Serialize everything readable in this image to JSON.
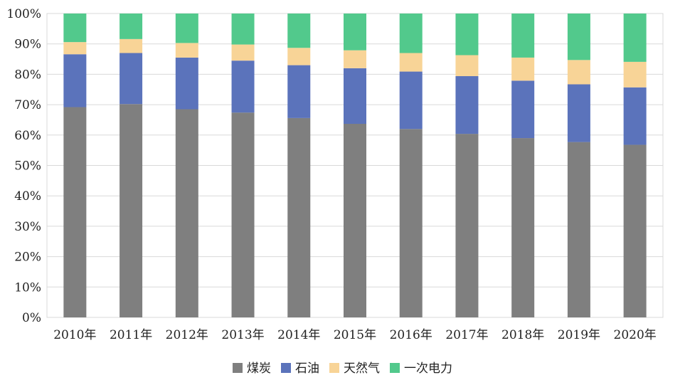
{
  "chart_data": {
    "type": "bar",
    "stacked": true,
    "percent_stacked": true,
    "categories": [
      "2010年",
      "2011年",
      "2012年",
      "2013年",
      "2014年",
      "2015年",
      "2016年",
      "2017年",
      "2018年",
      "2019年",
      "2020年"
    ],
    "series": [
      {
        "name": "煤炭",
        "color": "#7f7f7f",
        "values": [
          69.2,
          70.2,
          68.5,
          67.4,
          65.6,
          63.7,
          62.0,
          60.4,
          59.0,
          57.7,
          56.8
        ]
      },
      {
        "name": "石油",
        "color": "#5b73bb",
        "values": [
          17.4,
          16.8,
          17.0,
          17.1,
          17.4,
          18.3,
          18.9,
          19.0,
          18.9,
          19.0,
          18.9
        ]
      },
      {
        "name": "天然气",
        "color": "#f8d497",
        "values": [
          4.0,
          4.6,
          4.8,
          5.3,
          5.7,
          5.9,
          6.1,
          6.9,
          7.6,
          8.0,
          8.4
        ]
      },
      {
        "name": "一次电力",
        "color": "#52c98c",
        "values": [
          9.4,
          8.4,
          9.7,
          10.2,
          11.3,
          12.1,
          13.0,
          13.7,
          14.5,
          15.3,
          15.9
        ]
      }
    ],
    "title": "",
    "xlabel": "",
    "ylabel": "",
    "ylim": [
      0,
      100
    ],
    "yticks": [
      "0%",
      "10%",
      "20%",
      "30%",
      "40%",
      "50%",
      "60%",
      "70%",
      "80%",
      "90%",
      "100%"
    ],
    "grid": true,
    "legend_position": "bottom"
  }
}
